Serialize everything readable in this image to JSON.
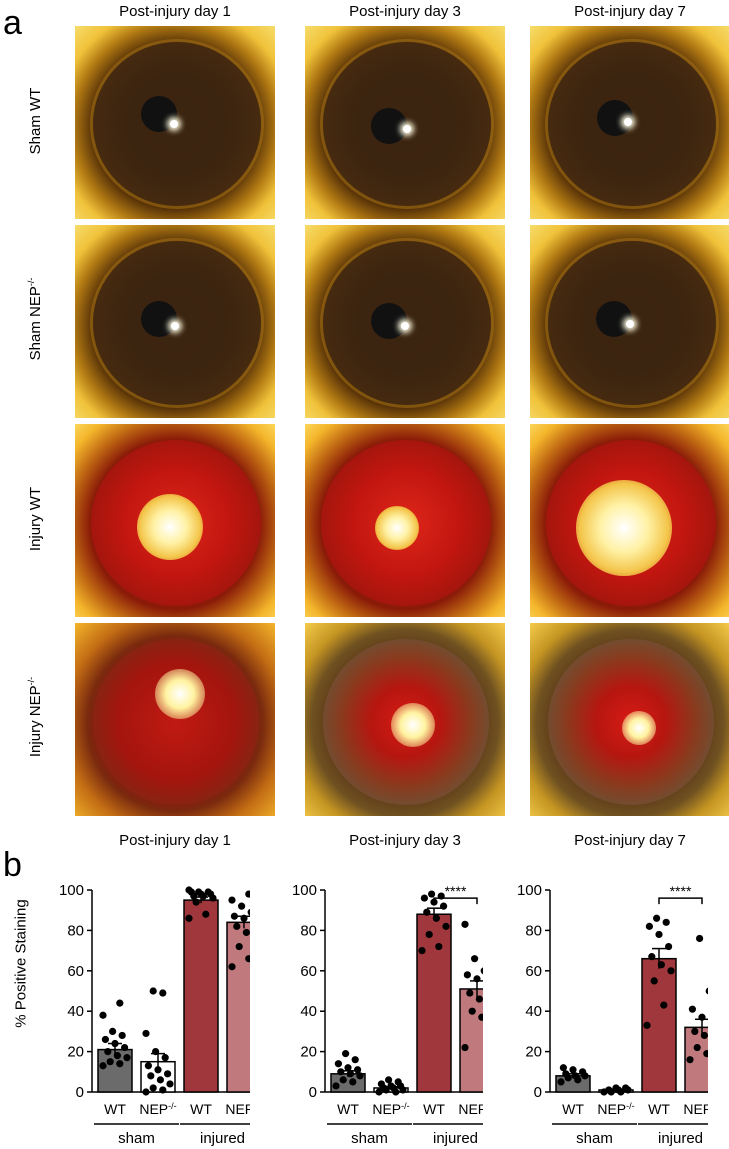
{
  "figure": {
    "panel_a_label": "a",
    "panel_b_label": "b",
    "column_titles": [
      "Post-injury day 1",
      "Post-injury day 3",
      "Post-injury day 7"
    ],
    "row_labels": [
      {
        "text": "Sham WT",
        "sup": ""
      },
      {
        "text": "Sham NEP",
        "sup": "-/-"
      },
      {
        "text": "Injury WT",
        "sup": ""
      },
      {
        "text": "Injury NEP",
        "sup": "-/-"
      }
    ],
    "ylabel": "% Positive Staining"
  },
  "chart_data": [
    {
      "type": "bar",
      "title": "Post-injury day 1",
      "ylabel": "% Positive Staining",
      "ylim": [
        0,
        100
      ],
      "yticks": [
        0,
        20,
        40,
        60,
        80,
        100
      ],
      "categories": [
        "WT",
        "NEP-/-",
        "WT",
        "NEP-/-"
      ],
      "groups": [
        {
          "label": "sham",
          "members": [
            0,
            1
          ]
        },
        {
          "label": "injured",
          "members": [
            2,
            3
          ]
        }
      ],
      "values": [
        21,
        15,
        95,
        84
      ],
      "errors": [
        3,
        4,
        1.5,
        3
      ],
      "bar_colors": [
        "#6b6b6b",
        "#ffffff",
        "#a0373d",
        "#c07a7e"
      ],
      "points": [
        [
          13,
          14,
          15,
          17,
          18,
          20,
          22,
          24,
          26,
          28,
          30,
          38,
          44
        ],
        [
          0,
          1,
          2,
          4,
          6,
          8,
          9,
          11,
          13,
          17,
          20,
          29,
          49,
          50
        ],
        [
          86,
          88,
          94,
          96,
          97,
          97,
          98,
          98,
          99,
          99,
          99,
          100
        ],
        [
          62,
          66,
          72,
          75,
          79,
          82,
          84,
          86,
          87,
          89,
          92,
          95,
          98
        ]
      ],
      "significance": ""
    },
    {
      "type": "bar",
      "title": "Post-injury day 3",
      "ylabel": "",
      "ylim": [
        0,
        100
      ],
      "yticks": [
        0,
        20,
        40,
        60,
        80,
        100
      ],
      "categories": [
        "WT",
        "NEP-/-",
        "WT",
        "NEP-/-"
      ],
      "groups": [
        {
          "label": "sham",
          "members": [
            0,
            1
          ]
        },
        {
          "label": "injured",
          "members": [
            2,
            3
          ]
        }
      ],
      "values": [
        9,
        2,
        88,
        51
      ],
      "errors": [
        1.5,
        0.6,
        3,
        4
      ],
      "bar_colors": [
        "#6b6b6b",
        "#ffffff",
        "#a0373d",
        "#c07a7e"
      ],
      "points": [
        [
          3,
          5,
          6,
          8,
          9,
          10,
          11,
          12,
          14,
          16,
          19
        ],
        [
          0,
          0,
          1,
          1,
          2,
          2,
          3,
          3,
          4,
          5,
          6
        ],
        [
          70,
          72,
          78,
          82,
          86,
          89,
          92,
          94,
          96,
          97,
          98
        ],
        [
          22,
          37,
          40,
          44,
          46,
          49,
          52,
          56,
          58,
          60,
          66,
          83
        ]
      ],
      "significance": "****"
    },
    {
      "type": "bar",
      "title": "Post-injury day 7",
      "ylabel": "",
      "ylim": [
        0,
        100
      ],
      "yticks": [
        0,
        20,
        40,
        60,
        80,
        100
      ],
      "categories": [
        "WT",
        "NEP-/-",
        "WT",
        "NEP-/-"
      ],
      "groups": [
        {
          "label": "sham",
          "members": [
            0,
            1
          ]
        },
        {
          "label": "injured",
          "members": [
            2,
            3
          ]
        }
      ],
      "values": [
        8,
        1,
        66,
        32
      ],
      "errors": [
        1,
        0.4,
        5,
        4
      ],
      "bar_colors": [
        "#6b6b6b",
        "#ffffff",
        "#a0373d",
        "#c07a7e"
      ],
      "points": [
        [
          5,
          6,
          7,
          8,
          8,
          9,
          10,
          11,
          12
        ],
        [
          0,
          0,
          0,
          1,
          1,
          1,
          2,
          2
        ],
        [
          33,
          43,
          55,
          60,
          63,
          67,
          72,
          78,
          82,
          84,
          86
        ],
        [
          16,
          19,
          22,
          25,
          28,
          30,
          33,
          37,
          41,
          50,
          76
        ]
      ],
      "significance": "****"
    }
  ]
}
